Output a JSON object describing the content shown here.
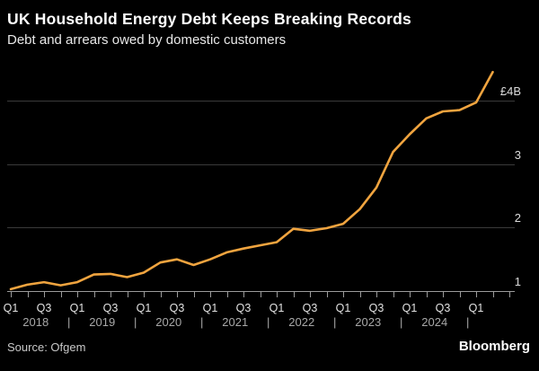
{
  "header": {
    "title": "UK Household Energy Debt Keeps Breaking Records",
    "subtitle": "Debt and arrears owed by domestic customers"
  },
  "footer": {
    "source": "Source: Ofgem",
    "brand": "Bloomberg"
  },
  "colors": {
    "background": "#000000",
    "line": "#F0A43F",
    "gridline": "#3a3a3a",
    "axis": "#9b9b9b",
    "title_text": "#ffffff",
    "subtitle_text": "#e8e8e8",
    "quarter_label_text": "#e2e2e2",
    "year_label_text": "#a8a8a8"
  },
  "chart_data": {
    "type": "line",
    "title": "UK Household Energy Debt Keeps Breaking Records",
    "subtitle": "Debt and arrears owed by domestic customers",
    "unit": "GBP billions",
    "series_name": "Debt and arrears owed by domestic customers",
    "categories": [
      "Q1 2018",
      "Q2 2018",
      "Q3 2018",
      "Q4 2018",
      "Q1 2019",
      "Q2 2019",
      "Q3 2019",
      "Q4 2019",
      "Q1 2020",
      "Q2 2020",
      "Q3 2020",
      "Q4 2020",
      "Q1 2021",
      "Q2 2021",
      "Q3 2021",
      "Q4 2021",
      "Q1 2022",
      "Q2 2022",
      "Q3 2022",
      "Q4 2022",
      "Q1 2023",
      "Q2 2023",
      "Q3 2023",
      "Q4 2023",
      "Q1 2024",
      "Q2 2024",
      "Q3 2024",
      "Q4 2024",
      "Q1 2025",
      "Q2 2025"
    ],
    "values": [
      1.03,
      1.1,
      1.14,
      1.09,
      1.14,
      1.26,
      1.27,
      1.22,
      1.29,
      1.45,
      1.5,
      1.41,
      1.5,
      1.61,
      1.67,
      1.72,
      1.77,
      1.98,
      1.95,
      1.99,
      2.06,
      2.29,
      2.63,
      3.19,
      3.47,
      3.72,
      3.83,
      3.85,
      3.97,
      4.45
    ],
    "ylim": [
      1,
      4.6
    ],
    "yticks": [
      {
        "value": 1,
        "label": "1"
      },
      {
        "value": 2,
        "label": "2"
      },
      {
        "value": 3,
        "label": "3"
      },
      {
        "value": 4,
        "label": "£4B"
      }
    ],
    "x_axis": {
      "q1_label": "Q1",
      "q3_label": "Q3",
      "years": [
        "2018",
        "2019",
        "2020",
        "2021",
        "2022",
        "2023",
        "2024"
      ],
      "separator": "|"
    },
    "legend": "none",
    "grid": "horizontal"
  }
}
